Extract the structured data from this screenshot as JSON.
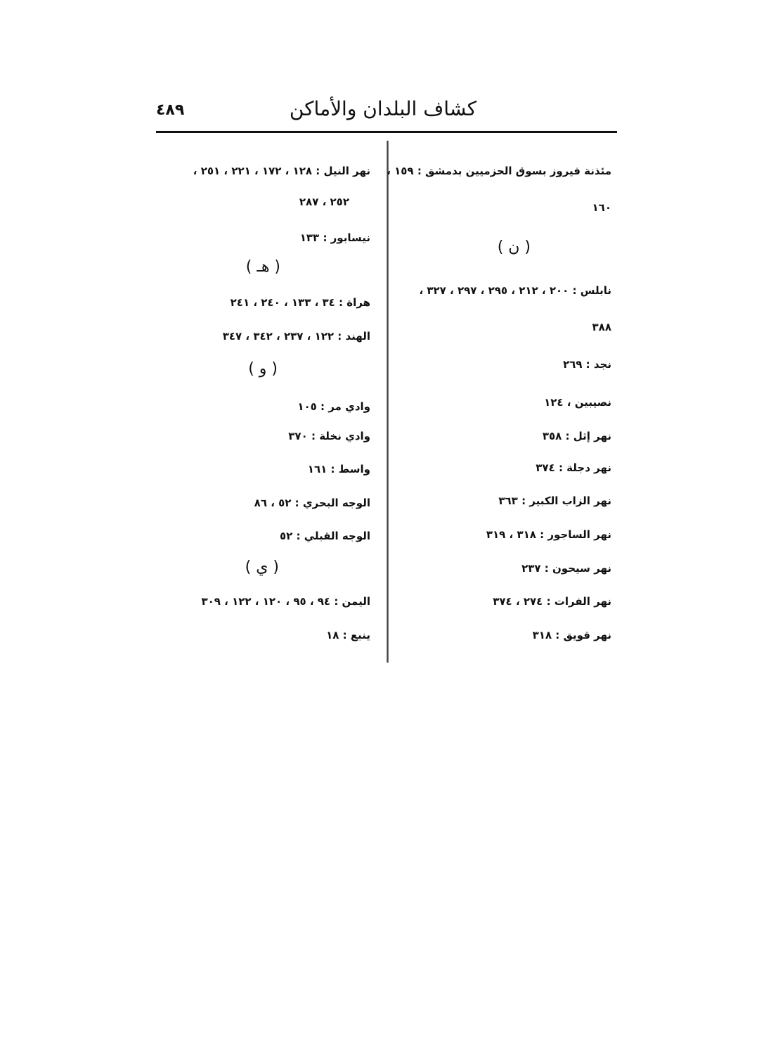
{
  "header": {
    "title": "كشاف البلدان والأماكن",
    "page_number": "٤٨٩"
  },
  "right_column": [
    {
      "text": "مئذنة فيروز بسوق الحزميين بدمشق : ١٥٩ ،"
    },
    {
      "text": "١٦٠"
    },
    {
      "text": "( ن )"
    },
    {
      "text": "نابلس : ٢٠٠ ، ٢١٢ ، ٢٩٥ ، ٢٩٧ ، ٣٢٧ ،"
    },
    {
      "text": "٣٨٨"
    },
    {
      "text": "نجد : ٢٦٩"
    },
    {
      "text": "نصيبين ، ١٢٤"
    },
    {
      "text": "نهر إثل : ٣٥٨"
    },
    {
      "text": "نهر دجلة : ٣٧٤"
    },
    {
      "text": "نهر الزاب الكبير : ٣٦٣"
    },
    {
      "text": "نهر الساجور : ٣١٨ ، ٣١٩"
    },
    {
      "text": "نهر سيحون : ٢٣٧"
    },
    {
      "text": "نهر الفرات : ٢٧٤ ، ٣٧٤"
    },
    {
      "text": "نهر قويق : ٣١٨"
    }
  ],
  "left_column": [
    {
      "text": "نهر النيل : ١٢٨ ، ١٧٢ ، ٢٢١ ، ٢٥١ ،"
    },
    {
      "text": "٢٥٢ ، ٢٨٧"
    },
    {
      "text": "نيسابور : ١٣٣"
    },
    {
      "text": "( هـ )"
    },
    {
      "text": "هراة : ٣٤ ، ١٣٣ ، ٢٤٠ ، ٢٤١"
    },
    {
      "text": "الهند : ١٢٢ ، ٢٣٧ ، ٣٤٢ ، ٣٤٧"
    },
    {
      "text": "( و )"
    },
    {
      "text": "وادي مر : ١٠٥"
    },
    {
      "text": "وادي نخلة : ٣٧٠"
    },
    {
      "text": "واسط : ١٦١"
    },
    {
      "text": "الوجه البحري : ٥٢ ، ٨٦"
    },
    {
      "text": "الوجه القبلي : ٥٢"
    },
    {
      "text": "( ي )"
    },
    {
      "text": "اليمن : ٩٤ ، ٩٥ ، ١٢٠ ، ١٢٢ ، ٣٠٩"
    },
    {
      "text": "ينبع : ١٨"
    }
  ]
}
